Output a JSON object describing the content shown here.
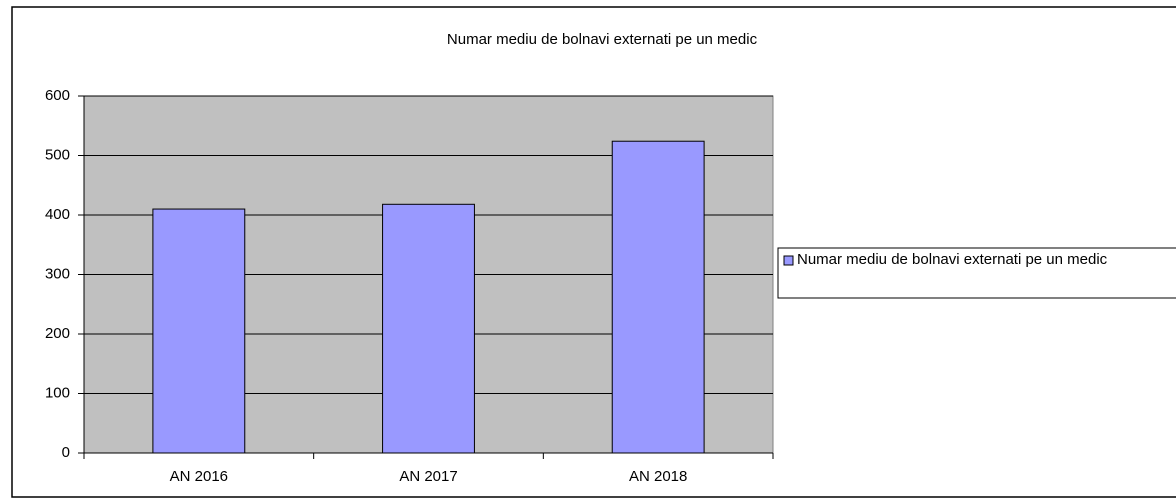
{
  "chart_data": {
    "type": "bar",
    "title": "Numar mediu de bolnavi externati pe un medic",
    "categories": [
      "AN 2016",
      "AN 2017",
      "AN 2018"
    ],
    "series": [
      {
        "name": "Numar mediu de bolnavi externati pe un medic",
        "color": "#9999ff",
        "values": [
          410,
          418,
          524
        ]
      }
    ],
    "ylim": [
      0,
      600
    ],
    "yticks": [
      0,
      100,
      200,
      300,
      400,
      500,
      600
    ],
    "grid": true,
    "legend": "right"
  }
}
